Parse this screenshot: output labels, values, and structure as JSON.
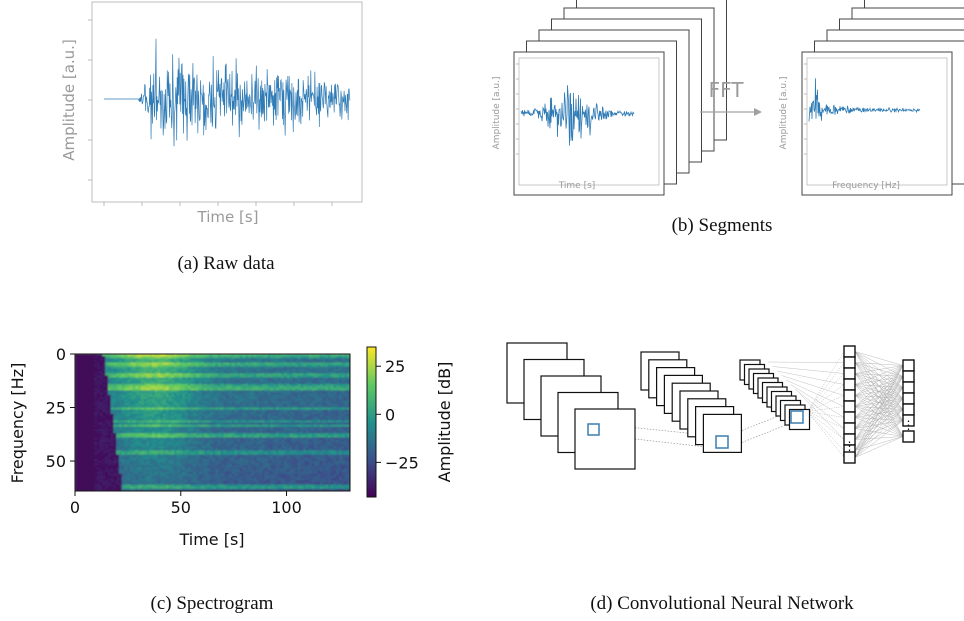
{
  "panel_a": {
    "caption": "(a) Raw data",
    "xlabel": "Time [s]",
    "ylabel": "Amplitude [a.u.]",
    "signal_color": "#2f7bb6"
  },
  "panel_b": {
    "caption": "(b) Segments",
    "arrow_label": "FFT",
    "time_xlabel": "Time [s]",
    "time_ylabel": "Amplitude [a.u.]",
    "freq_xlabel": "Frequency [Hz]",
    "freq_ylabel": "Amplitude [a.u.]"
  },
  "panel_c": {
    "caption": "(c) Spectrogram",
    "chart_data": {
      "type": "heatmap",
      "xlabel": "Time [s]",
      "ylabel": "Frequency [Hz]",
      "xlim": [
        0,
        130
      ],
      "ylim": [
        64,
        0
      ],
      "x_ticks": [
        "0",
        "50",
        "100"
      ],
      "x_tick_values": [
        0,
        50,
        100
      ],
      "y_ticks": [
        "0",
        "25",
        "50"
      ],
      "y_tick_values": [
        0,
        25,
        50
      ],
      "colorbar": {
        "label": "Amplitude [dB]",
        "range": [
          -43,
          35
        ],
        "ticks": [
          "25",
          "0",
          "−25"
        ],
        "tick_values": [
          25,
          0,
          -25
        ],
        "colormap": "viridis"
      }
    }
  },
  "panel_d": {
    "caption": "(d) Convolutional Neural Network",
    "highlight_color": "#3b7fb0"
  }
}
